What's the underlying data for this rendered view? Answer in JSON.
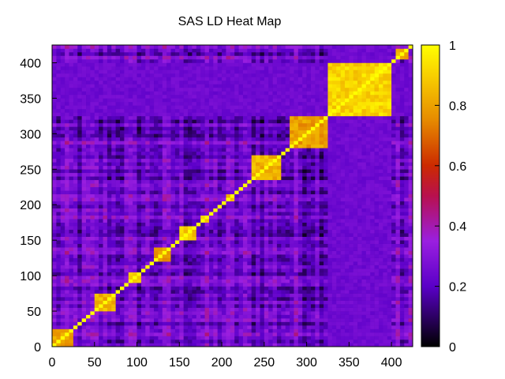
{
  "chart_data": {
    "type": "heatmap",
    "title": "SAS LD Heat Map",
    "xlabel": "",
    "ylabel": "",
    "xlim": [
      0,
      425
    ],
    "ylim": [
      0,
      425
    ],
    "x_ticks": [
      "0",
      "50",
      "100",
      "150",
      "200",
      "250",
      "300",
      "350",
      "400"
    ],
    "y_ticks": [
      "0",
      "50",
      "100",
      "150",
      "200",
      "250",
      "300",
      "350",
      "400"
    ],
    "colorbar": {
      "range": [
        0,
        1
      ],
      "ticks": [
        "0",
        "0.2",
        "0.4",
        "0.6",
        "0.8",
        "1"
      ],
      "palette": "gnuplot black-purple-red-orange-yellow"
    },
    "grid": false,
    "matrix_size": 425,
    "description_blocks": [
      {
        "start": 0,
        "end": 25,
        "value": 0.85
      },
      {
        "start": 50,
        "end": 75,
        "value": 0.9
      },
      {
        "start": 90,
        "end": 105,
        "value": 0.95
      },
      {
        "start": 120,
        "end": 140,
        "value": 0.85
      },
      {
        "start": 150,
        "end": 170,
        "value": 0.95
      },
      {
        "start": 175,
        "end": 185,
        "value": 0.95
      },
      {
        "start": 205,
        "end": 215,
        "value": 0.9
      },
      {
        "start": 235,
        "end": 270,
        "value": 0.9
      },
      {
        "start": 280,
        "end": 325,
        "value": 0.85
      },
      {
        "start": 325,
        "end": 400,
        "value": 0.97
      },
      {
        "start": 405,
        "end": 420,
        "value": 0.9
      }
    ]
  }
}
